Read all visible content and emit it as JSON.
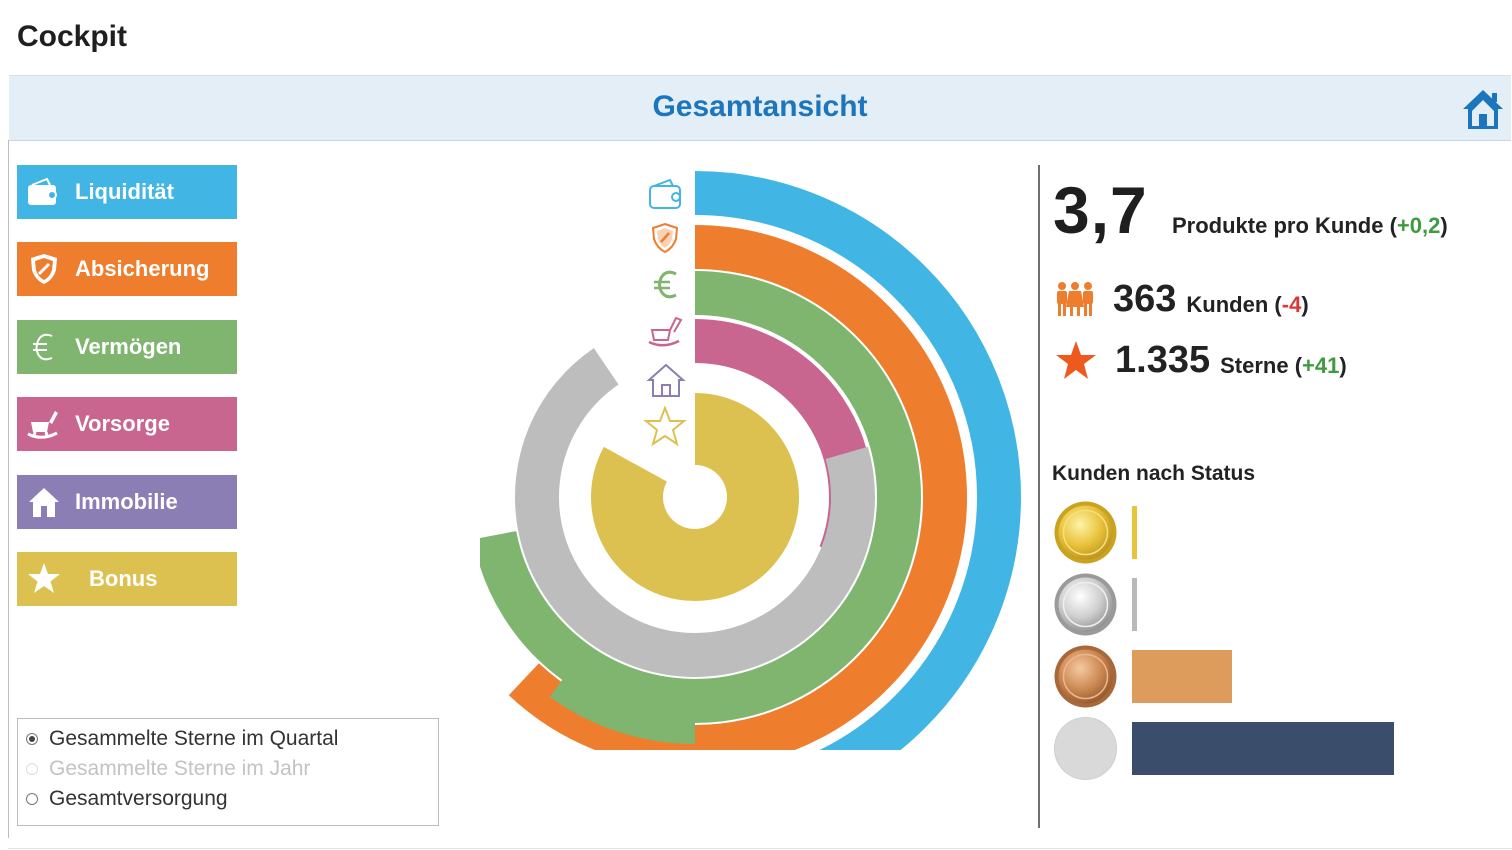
{
  "page": {
    "title": "Cockpit"
  },
  "header": {
    "title": "Gesamtansicht"
  },
  "categories": [
    {
      "label": "Liquidität",
      "color": "#41b5e3",
      "icon": "wallet-icon"
    },
    {
      "label": "Absicherung",
      "color": "#ee7e2e",
      "icon": "shield-icon"
    },
    {
      "label": "Vermögen",
      "color": "#7fb56e",
      "icon": "euro-icon"
    },
    {
      "label": "Vorsorge",
      "color": "#c8668f",
      "icon": "rocking-chair-icon"
    },
    {
      "label": "Immobilie",
      "color": "#8a7eb5",
      "icon": "house-icon"
    },
    {
      "label": "Bonus",
      "color": "#dcc150",
      "icon": "star-icon"
    }
  ],
  "view_options": {
    "items": [
      {
        "label": "Gesammelte Sterne im Quartal",
        "selected": true,
        "disabled": false
      },
      {
        "label": "Gesammelte Sterne im Jahr",
        "selected": false,
        "disabled": true
      },
      {
        "label": "Gesamtversorgung",
        "selected": false,
        "disabled": false
      }
    ]
  },
  "kpis": {
    "products_per_customer": {
      "value": "3,7",
      "label": "Produkte pro Kunde",
      "delta": "+0,2"
    },
    "customers": {
      "value": "363",
      "label": "Kunden",
      "delta": "-4"
    },
    "stars": {
      "value": "1.335",
      "label": "Sterne",
      "delta": "+41"
    }
  },
  "status": {
    "title": "Kunden nach Status",
    "levels": [
      {
        "medal": "gold-medal-icon",
        "bar_color": "#e8c33c",
        "relative_value": 0.02
      },
      {
        "medal": "silver-medal-icon",
        "bar_color": "#b9b9b9",
        "relative_value": 0.02
      },
      {
        "medal": "bronze-medal-icon",
        "bar_color": "#dd9c5c",
        "relative_value": 0.38
      },
      {
        "medal": "no-medal-icon",
        "bar_color": "#3a4d6b",
        "relative_value": 1.0
      }
    ]
  },
  "chart_data": {
    "type": "radial-bar",
    "rings": [
      {
        "category": "Liquidität",
        "color": "#41b5e3",
        "filled_fraction": 0.5
      },
      {
        "category": "Absicherung",
        "color": "#ee7e2e",
        "filled_fraction": 0.62
      },
      {
        "category": "Vermögen",
        "color": "#7fb56e",
        "filled_fraction": 0.72
      },
      {
        "category": "Vorsorge",
        "color": "#c8668f",
        "filled_fraction": 0.31
      },
      {
        "category": "Immobilie",
        "color": "#bdbdbd",
        "filled_fraction": 0.7
      },
      {
        "category": "Bonus",
        "color": "#dcc150",
        "filled_fraction": 0.83
      }
    ]
  }
}
